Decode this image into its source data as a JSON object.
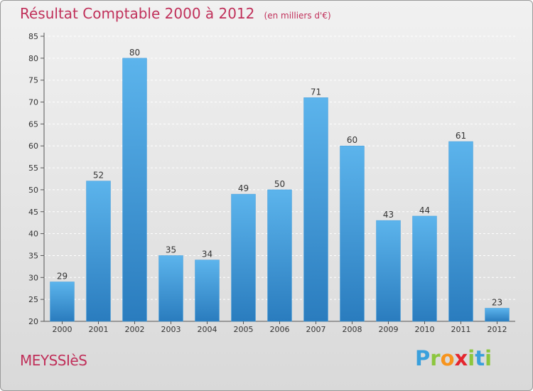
{
  "header": {
    "title": "Résultat Comptable 2000 à 2012",
    "subtitle": "(en milliers d'€)"
  },
  "footer": {
    "commune": "MEYSSIèS",
    "logo": {
      "text": "Proxiti",
      "letters": [
        "P",
        "r",
        "o",
        "x",
        "i",
        "t",
        "i"
      ],
      "letter_colors": [
        "#3aa0dc",
        "#8cc63e",
        "#f7941d",
        "#e4262e",
        "#8cc63e",
        "#3aa0dc",
        "#8cc63e"
      ]
    }
  },
  "colors": {
    "title": "#c0305a",
    "bar_light": "#5cb4ec",
    "bar_dark": "#2a7cbe",
    "axis": "#555555",
    "grid": "#ffffff"
  },
  "chart_data": {
    "type": "bar",
    "categories": [
      "2000",
      "2001",
      "2002",
      "2003",
      "2004",
      "2005",
      "2006",
      "2007",
      "2008",
      "2009",
      "2010",
      "2011",
      "2012"
    ],
    "values": [
      29,
      52,
      80,
      35,
      34,
      49,
      50,
      71,
      60,
      43,
      44,
      61,
      23
    ],
    "ylim": [
      20,
      85
    ],
    "yticks": [
      20,
      25,
      30,
      35,
      40,
      45,
      50,
      55,
      60,
      65,
      70,
      75,
      80,
      85
    ],
    "grid": "horizontal dashed",
    "title": "Résultat Comptable 2000 à 2012",
    "subtitle": "(en milliers d'€)",
    "data_labels": true
  }
}
